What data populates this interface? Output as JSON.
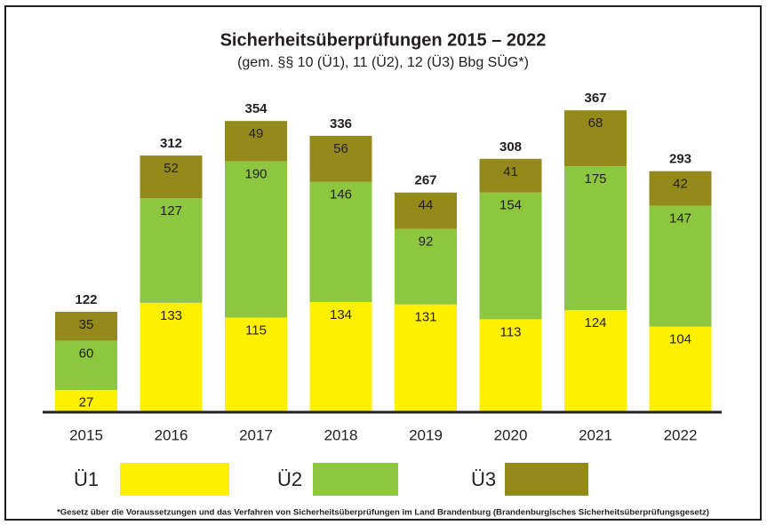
{
  "chart_data": {
    "type": "stacked_bar",
    "title": "Sicherheitsüberprüfungen 2015 – 2022",
    "subtitle": "(gem. §§ 10 (Ü1), 11 (Ü2), 12 (Ü3) Bbg SÜG*)",
    "categories": [
      "2015",
      "2016",
      "2017",
      "2018",
      "2019",
      "2020",
      "2021",
      "2022"
    ],
    "series": [
      {
        "name": "Ü1",
        "color": "#fff000",
        "values": [
          27,
          133,
          115,
          134,
          131,
          113,
          124,
          104
        ]
      },
      {
        "name": "Ü2",
        "color": "#8dc63f",
        "values": [
          60,
          127,
          190,
          146,
          92,
          154,
          175,
          147
        ]
      },
      {
        "name": "Ü3",
        "color": "#948a1c",
        "values": [
          35,
          52,
          49,
          56,
          44,
          41,
          68,
          42
        ]
      }
    ],
    "totals": [
      122,
      312,
      354,
      336,
      267,
      308,
      367,
      293
    ],
    "footnote": "*Gesetz über die Voraussetzungen und das Verfahren von Sicherheitsüberprüfungen im Land Brandenburg (Brandenburgisches Sicherheitsüberprüfungsgesetz)"
  }
}
